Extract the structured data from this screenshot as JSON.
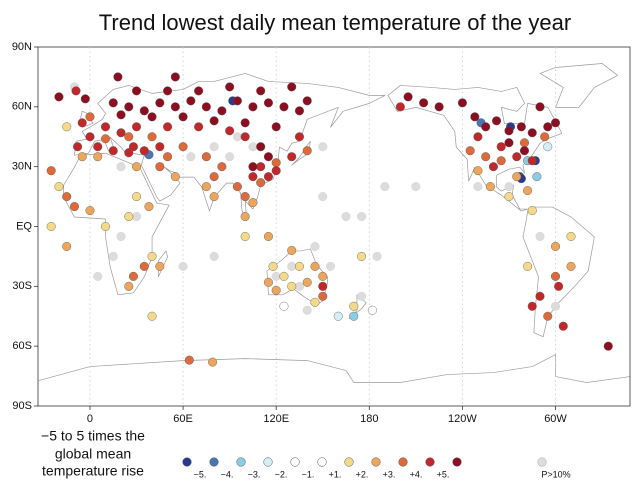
{
  "chart_data": {
    "type": "scatter",
    "title": "Trend lowest daily mean temperature of the year",
    "annotation": [
      "−5 to 5 times the",
      "global mean",
      "temperature rise"
    ],
    "xlim": [
      -33.5,
      348
    ],
    "ylim": [
      -90,
      90
    ],
    "xticks": [
      0,
      {
        "value": 60,
        "label": "60E"
      },
      {
        "value": 120,
        "label": "120E"
      },
      180,
      {
        "value": 240,
        "label": "120W"
      },
      {
        "value": 300,
        "label": "60W"
      }
    ],
    "yticks": [
      {
        "value": -90,
        "label": "90S"
      },
      {
        "value": -60,
        "label": "60S"
      },
      {
        "value": -30,
        "label": "30S"
      },
      {
        "value": 0,
        "label": "EQ"
      },
      {
        "value": 30,
        "label": "30N"
      },
      {
        "value": 60,
        "label": "60N"
      },
      {
        "value": 90,
        "label": "90N"
      }
    ],
    "grid": true,
    "legend_labels": [
      "−5.",
      "−4.",
      "−3.",
      "−2.",
      "−1.",
      "+1.",
      "+2.",
      "+3.",
      "+4.",
      "+5."
    ],
    "series": [
      {
        "color": "#283a8f",
        "x": [
          92,
          271,
          277,
          287,
          278
        ],
        "y": [
          63,
          50,
          25,
          33,
          24
        ]
      },
      {
        "color": "#4a74b4",
        "x": [
          38,
          252
        ],
        "y": [
          36,
          52
        ]
      },
      {
        "color": "#8ccbe4",
        "x": [
          282,
          288,
          170
        ],
        "y": [
          33,
          25,
          -45
        ]
      },
      {
        "color": "#d4eef5",
        "x": [
          295,
          160
        ],
        "y": [
          40,
          -45
        ]
      },
      {
        "color": "#ffffff",
        "x": [
          182
        ],
        "y": [
          -42
        ]
      },
      {
        "color": "#ffffff",
        "x": [
          125
        ],
        "y": [
          -40
        ]
      },
      {
        "color": "#f5d98a",
        "x": [
          -15,
          30,
          40,
          100,
          125,
          135,
          130,
          118,
          145,
          25,
          10,
          270,
          285,
          -25,
          -20,
          175,
          40,
          170,
          282,
          310
        ],
        "y": [
          50,
          15,
          -15,
          -5,
          -25,
          -20,
          -30,
          -20,
          -38,
          5,
          0,
          15,
          8,
          0,
          20,
          -15,
          -45,
          -40,
          -20,
          -5
        ]
      },
      {
        "color": "#eba55c",
        "x": [
          5,
          -5,
          30,
          55,
          75,
          80,
          100,
          105,
          115,
          130,
          145,
          140,
          115,
          120,
          150,
          250,
          258,
          275,
          282,
          300,
          310,
          25,
          45,
          -15,
          38,
          0,
          79
        ],
        "y": [
          35,
          35,
          30,
          25,
          20,
          15,
          5,
          12,
          -5,
          -12,
          -20,
          -28,
          -28,
          -32,
          -25,
          28,
          20,
          25,
          18,
          -10,
          -20,
          -30,
          -20,
          -10,
          10,
          8,
          -68
        ]
      },
      {
        "color": "#dc6a3b",
        "x": [
          0,
          10,
          25,
          40,
          60,
          75,
          80,
          85,
          95,
          100,
          110,
          120,
          140,
          245,
          255,
          265,
          280,
          293,
          -15,
          -10,
          45,
          50,
          300,
          295,
          150,
          -25,
          28,
          35,
          64
        ],
        "y": [
          55,
          44,
          45,
          45,
          40,
          35,
          25,
          30,
          20,
          15,
          22,
          32,
          38,
          38,
          35,
          33,
          42,
          45,
          15,
          10,
          30,
          35,
          -25,
          -45,
          -35,
          28,
          -25,
          -20,
          -67
        ]
      },
      {
        "color": "#c0282a",
        "x": [
          10,
          20,
          30,
          50,
          70,
          90,
          100,
          110,
          120,
          115,
          105,
          28,
          35,
          45,
          250,
          265,
          275,
          285,
          260,
          200,
          0,
          5,
          -5,
          -8,
          15,
          25,
          130,
          135,
          150,
          285,
          290,
          302,
          305,
          -9
        ],
        "y": [
          50,
          47,
          50,
          50,
          50,
          48,
          45,
          30,
          28,
          25,
          25,
          40,
          38,
          40,
          45,
          40,
          35,
          33,
          30,
          60,
          45,
          40,
          52,
          40,
          38,
          37,
          35,
          45,
          -30,
          -40,
          -35,
          -30,
          -50,
          68
        ]
      },
      {
        "color": "#8b0f20",
        "x": [
          15,
          25,
          35,
          45,
          55,
          65,
          75,
          85,
          95,
          105,
          115,
          125,
          135,
          140,
          30,
          50,
          70,
          90,
          110,
          130,
          20,
          40,
          60,
          80,
          100,
          120,
          110,
          115,
          105,
          -3,
          248,
          255,
          262,
          270,
          278,
          285,
          295,
          300,
          240,
          205,
          215,
          225,
          270,
          280,
          290,
          18,
          55,
          -20,
          334
        ],
        "y": [
          62,
          60,
          58,
          62,
          60,
          63,
          60,
          58,
          63,
          60,
          62,
          60,
          58,
          63,
          68,
          68,
          68,
          70,
          68,
          70,
          56,
          55,
          55,
          53,
          52,
          50,
          40,
          35,
          30,
          64,
          55,
          50,
          53,
          48,
          50,
          47,
          50,
          52,
          62,
          65,
          62,
          60,
          42,
          38,
          60,
          75,
          75,
          65,
          -60
        ]
      },
      {
        "name": "P>10%",
        "color": "#dcdcdc",
        "x": [
          90,
          105,
          95,
          150,
          190,
          175,
          165,
          150,
          100,
          80,
          65,
          20,
          30,
          15,
          5,
          130,
          135,
          120,
          145,
          155,
          175,
          185,
          210,
          250,
          270,
          290,
          300,
          60,
          20,
          140,
          80,
          -10
        ],
        "y": [
          35,
          40,
          45,
          40,
          20,
          5,
          5,
          15,
          15,
          40,
          35,
          30,
          5,
          -15,
          -25,
          -20,
          -30,
          -25,
          -10,
          -20,
          -35,
          -15,
          20,
          20,
          20,
          -5,
          -40,
          -20,
          -5,
          -42,
          -15,
          70
        ]
      }
    ]
  }
}
